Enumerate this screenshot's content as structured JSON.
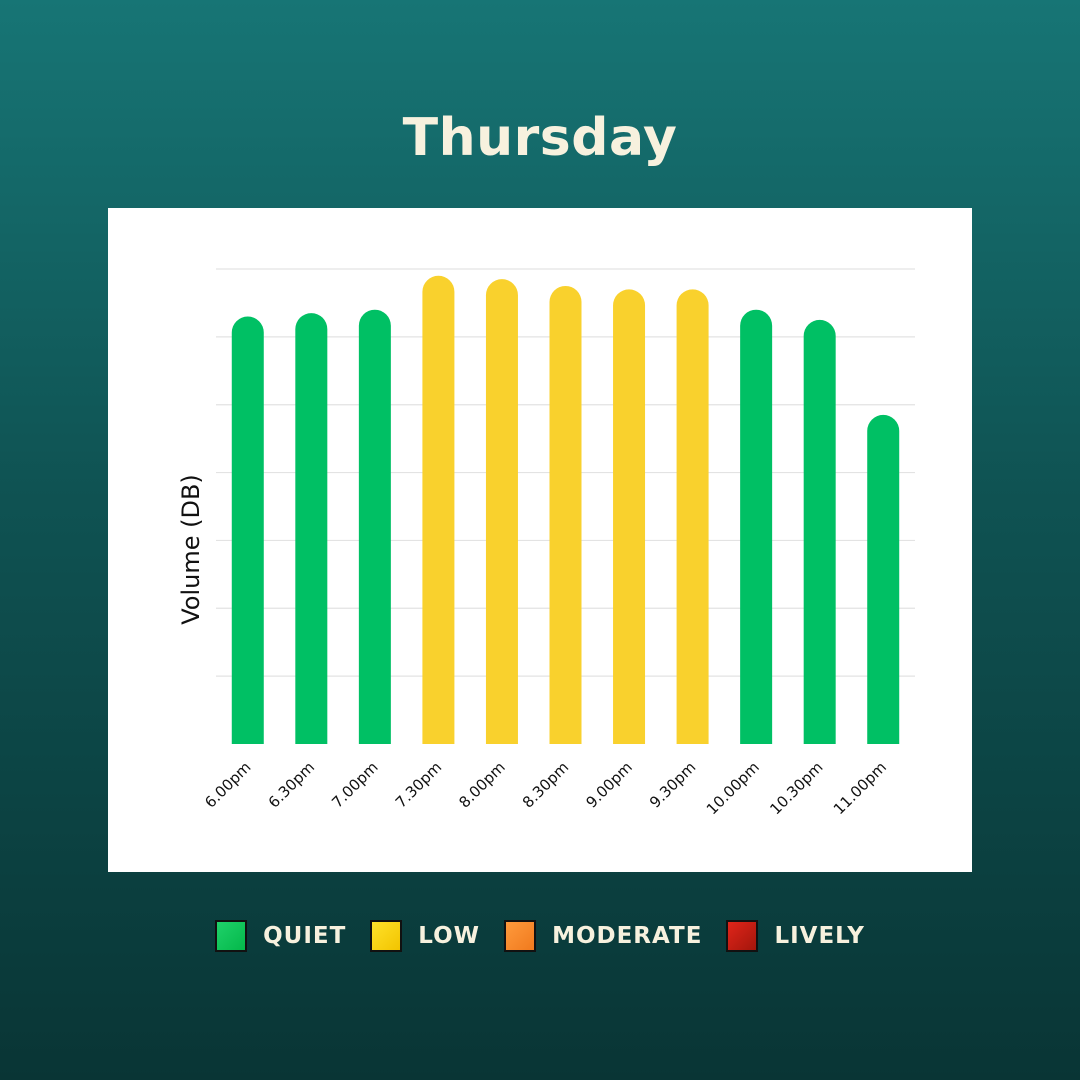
{
  "title": "Thursday",
  "chart_data": {
    "type": "bar",
    "ylabel": "Volume (DB)",
    "xlabel": "",
    "ylim": [
      0,
      7
    ],
    "grid": true,
    "categories": [
      "6.00pm",
      "6.30pm",
      "7.00pm",
      "7.30pm",
      "8.00pm",
      "8.30pm",
      "9.00pm",
      "9.30pm",
      "10.00pm",
      "10.30pm",
      "11.00pm"
    ],
    "values": [
      6.3,
      6.35,
      6.4,
      6.9,
      6.85,
      6.75,
      6.7,
      6.7,
      6.4,
      6.25,
      4.85
    ],
    "levels": [
      "QUIET",
      "QUIET",
      "QUIET",
      "LOW",
      "LOW",
      "LOW",
      "LOW",
      "LOW",
      "QUIET",
      "QUIET",
      "QUIET"
    ]
  },
  "legend": [
    {
      "label": "QUIET",
      "color": "#1fd16a",
      "color2": "#04b84a"
    },
    {
      "label": "LOW",
      "color": "#ffe12a",
      "color2": "#f2c400"
    },
    {
      "label": "MODERATE",
      "color": "#ff9a3c",
      "color2": "#f07a1e"
    },
    {
      "label": "LIVELY",
      "color": "#e0251a",
      "color2": "#a3160c"
    }
  ],
  "colors": {
    "QUIET": "#00c064",
    "LOW": "#f9d12d"
  }
}
